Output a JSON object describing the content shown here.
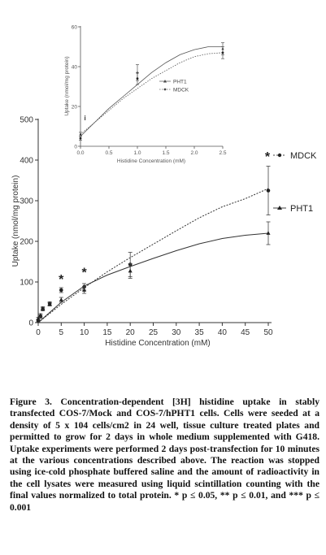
{
  "figure": {
    "caption_label": "Figure 3.",
    "caption_body": " Concentration-dependent [3H] histidine uptake in stably transfected COS-7/Mock and COS-7/hPHT1 cells. Cells were seeded at a density of 5 x 104 cells/cm2 in 24 well, tissue culture treated plates and permitted to grow for 2 days in whole medium supplemented with G418. Uptake experiments were performed 2 days post-transfection for 10 minutes at the various concentrations described above. The reaction was stopped using ice-cold phosphate buffered saline and the amount of radioactivity in the cell lysates were measured using liquid scintillation counting with the final values normalized to total protein. * p ≤ 0.05, ** p ≤ 0.01, and *** p ≤ 0.001"
  },
  "chart_data": [
    {
      "type": "line",
      "xlabel": "Histidine Concentration (mM)",
      "ylabel": "Uptake (nmol/mg protein)",
      "xlim": [
        0,
        50
      ],
      "ylim": [
        0,
        500
      ],
      "xticks": [
        "0",
        "5",
        "10",
        "15",
        "20",
        "25",
        "30",
        "35",
        "40",
        "45",
        "50"
      ],
      "yticks": [
        "0",
        "100",
        "200",
        "300",
        "400",
        "500"
      ],
      "series": [
        {
          "name": "MDCK",
          "points": [
            {
              "x": 0,
              "y": 5,
              "err": 3
            },
            {
              "x": 0.5,
              "y": 15,
              "err": 4
            },
            {
              "x": 1,
              "y": 33,
              "err": 4
            },
            {
              "x": 2.5,
              "y": 47,
              "err": 4
            },
            {
              "x": 5,
              "y": 80,
              "err": 6
            },
            {
              "x": 10,
              "y": 88,
              "err": 8
            },
            {
              "x": 20,
              "y": 143,
              "err": 30
            },
            {
              "x": 50,
              "y": 325,
              "err": 60
            }
          ],
          "fit": [
            [
              0,
              0
            ],
            [
              5,
              45
            ],
            [
              10,
              86
            ],
            [
              15,
              125
            ],
            [
              20,
              160
            ],
            [
              25,
              193
            ],
            [
              30,
              226
            ],
            [
              35,
              258
            ],
            [
              40,
              285
            ],
            [
              45,
              305
            ],
            [
              50,
              330
            ]
          ]
        },
        {
          "name": "PHT1",
          "points": [
            {
              "x": 0,
              "y": 10,
              "err": 3
            },
            {
              "x": 0.5,
              "y": 18,
              "err": 4
            },
            {
              "x": 1,
              "y": 35,
              "err": 4
            },
            {
              "x": 2.5,
              "y": 45,
              "err": 4
            },
            {
              "x": 5,
              "y": 56,
              "err": 6
            },
            {
              "x": 10,
              "y": 80,
              "err": 8
            },
            {
              "x": 20,
              "y": 127,
              "err": 18
            },
            {
              "x": 50,
              "y": 220,
              "err": 28
            }
          ],
          "fit": [
            [
              0,
              0
            ],
            [
              5,
              50
            ],
            [
              10,
              90
            ],
            [
              15,
              117
            ],
            [
              20,
              138
            ],
            [
              25,
              158
            ],
            [
              30,
              177
            ],
            [
              35,
              194
            ],
            [
              40,
              207
            ],
            [
              45,
              215
            ],
            [
              50,
              220
            ]
          ]
        }
      ],
      "annotations": [
        {
          "text": "*",
          "x": 5,
          "y": 108
        },
        {
          "text": "*",
          "x": 10,
          "y": 125
        }
      ]
    },
    {
      "type": "line",
      "xlabel": "Histidine Concentration (mM)",
      "ylabel": "Uptake (nmol/mg protein)",
      "xlim": [
        0,
        2.5
      ],
      "ylim": [
        0,
        60
      ],
      "xticks": [
        "0.0",
        "0.5",
        "1.0",
        "1.5",
        "2.0",
        "2.5"
      ],
      "yticks": [
        "0",
        "20",
        "40",
        "60"
      ],
      "series": [
        {
          "name": "PHT1",
          "points": [
            {
              "x": 0,
              "y": 6,
              "err": 1
            },
            {
              "x": 1,
              "y": 37,
              "err": 4
            },
            {
              "x": 2.5,
              "y": 49,
              "err": 3
            }
          ],
          "fit": [
            [
              0,
              5
            ],
            [
              0.25,
              12
            ],
            [
              0.5,
              19
            ],
            [
              0.75,
              25
            ],
            [
              1,
              31
            ],
            [
              1.25,
              37
            ],
            [
              1.5,
              42
            ],
            [
              1.75,
              46
            ],
            [
              2,
              48.5
            ],
            [
              2.25,
              50
            ],
            [
              2.5,
              50
            ]
          ]
        },
        {
          "name": "MDCK",
          "points": [
            {
              "x": 0,
              "y": 4,
              "err": 1
            },
            {
              "x": 1,
              "y": 34,
              "err": 3
            },
            {
              "x": 2.5,
              "y": 47,
              "err": 3
            }
          ],
          "fit": [
            [
              0,
              6
            ],
            [
              0.25,
              12
            ],
            [
              0.5,
              18
            ],
            [
              0.75,
              24
            ],
            [
              1,
              29
            ],
            [
              1.25,
              34
            ],
            [
              1.5,
              38
            ],
            [
              1.75,
              42
            ],
            [
              2,
              45
            ],
            [
              2.25,
              46.5
            ],
            [
              2.5,
              47
            ]
          ]
        }
      ],
      "annotations": [
        {
          "text": "i",
          "x": 0.08,
          "y": 13
        }
      ]
    }
  ]
}
